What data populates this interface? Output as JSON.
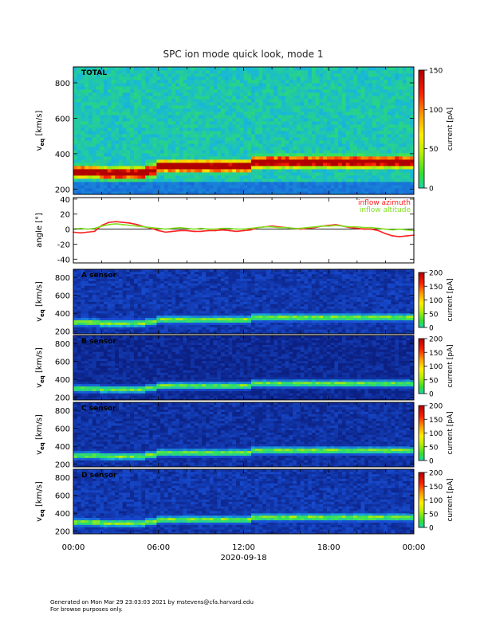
{
  "title": "SPC ion mode quick look, mode 1",
  "date_label": "2020-09-18",
  "x_ticks": [
    "00:00",
    "06:00",
    "12:00",
    "18:00",
    "00:00"
  ],
  "footer": {
    "line1": "Generated on Mon Mar 29 23:03:03 2021 by mstevens@cfa.harvard.edu",
    "line2": "For browse purposes only."
  },
  "chart_data": [
    {
      "type": "heatmap",
      "panel_label": "TOTAL",
      "ylabel_main": "v",
      "ylabel_sub": "eq",
      "ylabel_unit": "[km/s]",
      "y_ticks": [
        200,
        400,
        600,
        800
      ],
      "ylim": [
        170,
        890
      ],
      "colorbar_label": "current [pA]",
      "colorbar_ticks": [
        0,
        50,
        100,
        150
      ],
      "colorbar_range": [
        0,
        150
      ],
      "x_range_hours": [
        0,
        24
      ]
    },
    {
      "type": "line",
      "ylabel": "angle [°]",
      "y_ticks": [
        -40,
        -20,
        0,
        20,
        40
      ],
      "ylim": [
        -45,
        42
      ],
      "legend_placement": "top-right",
      "series": [
        {
          "name": "inflow azimuth",
          "color": "#ff2020",
          "x": [
            0,
            0.5,
            1,
            1.5,
            2,
            2.5,
            3,
            3.5,
            4,
            4.5,
            5,
            5.5,
            6,
            6.5,
            7,
            7.5,
            8,
            8.5,
            9,
            9.5,
            10,
            10.5,
            11,
            11.5,
            12,
            12.5,
            13,
            13.5,
            14,
            14.5,
            15,
            15.5,
            16,
            16.5,
            17,
            17.5,
            18,
            18.5,
            19,
            19.5,
            20,
            20.5,
            21,
            21.5,
            22,
            22.5,
            23,
            23.5,
            24
          ],
          "y": [
            -4,
            -5,
            -4,
            -3,
            5,
            9,
            10,
            9,
            8,
            6,
            3,
            1,
            -2,
            -4,
            -3,
            -2,
            -2,
            -3,
            -3,
            -2,
            -2,
            -1,
            -2,
            -3,
            -2,
            -1,
            2,
            3,
            4,
            3,
            2,
            1,
            0,
            1,
            2,
            4,
            5,
            6,
            4,
            2,
            1,
            0,
            0,
            -2,
            -6,
            -9,
            -10,
            -9,
            -8
          ]
        },
        {
          "name": "inflow altitude",
          "color": "#80e020",
          "x": [
            0,
            0.5,
            1,
            1.5,
            2,
            2.5,
            3,
            3.5,
            4,
            4.5,
            5,
            5.5,
            6,
            6.5,
            7,
            7.5,
            8,
            8.5,
            9,
            9.5,
            10,
            10.5,
            11,
            11.5,
            12,
            12.5,
            13,
            13.5,
            14,
            14.5,
            15,
            15.5,
            16,
            16.5,
            17,
            17.5,
            18,
            18.5,
            19,
            19.5,
            20,
            20.5,
            21,
            21.5,
            22,
            22.5,
            23,
            23.5,
            24
          ],
          "y": [
            0,
            1,
            0,
            1,
            4,
            6,
            7,
            6,
            5,
            4,
            3,
            2,
            1,
            0,
            1,
            2,
            1,
            0,
            1,
            0,
            0,
            1,
            1,
            0,
            0,
            1,
            2,
            3,
            3,
            2,
            2,
            1,
            1,
            2,
            3,
            4,
            4,
            5,
            4,
            3,
            3,
            2,
            2,
            1,
            0,
            -1,
            0,
            -1,
            -2
          ]
        }
      ]
    },
    {
      "type": "heatmap",
      "panel_label": "A sensor",
      "ylabel_main": "v",
      "ylabel_sub": "eq",
      "ylabel_unit": "[km/s]",
      "y_ticks": [
        200,
        400,
        600,
        800
      ],
      "ylim": [
        170,
        890
      ],
      "colorbar_label": "current [pA]",
      "colorbar_ticks": [
        0,
        50,
        100,
        150,
        200
      ],
      "colorbar_range": [
        0,
        200
      ],
      "x_range_hours": [
        0,
        24
      ]
    },
    {
      "type": "heatmap",
      "panel_label": "B sensor",
      "ylabel_main": "v",
      "ylabel_sub": "eq",
      "ylabel_unit": "[km/s]",
      "y_ticks": [
        200,
        400,
        600,
        800
      ],
      "ylim": [
        170,
        890
      ],
      "colorbar_label": "current [pA]",
      "colorbar_ticks": [
        0,
        50,
        100,
        150,
        200
      ],
      "colorbar_range": [
        0,
        200
      ],
      "x_range_hours": [
        0,
        24
      ]
    },
    {
      "type": "heatmap",
      "panel_label": "C sensor",
      "ylabel_main": "v",
      "ylabel_sub": "eq",
      "ylabel_unit": "[km/s]",
      "y_ticks": [
        200,
        400,
        600,
        800
      ],
      "ylim": [
        170,
        890
      ],
      "colorbar_label": "current [pA]",
      "colorbar_ticks": [
        0,
        50,
        100,
        150,
        200
      ],
      "colorbar_range": [
        0,
        200
      ],
      "x_range_hours": [
        0,
        24
      ]
    },
    {
      "type": "heatmap",
      "panel_label": "D sensor",
      "ylabel_main": "v",
      "ylabel_sub": "eq",
      "ylabel_unit": "[km/s]",
      "y_ticks": [
        200,
        400,
        600,
        800
      ],
      "ylim": [
        170,
        890
      ],
      "colorbar_label": "current [pA]",
      "colorbar_ticks": [
        0,
        50,
        100,
        150,
        200
      ],
      "colorbar_range": [
        0,
        200
      ],
      "x_range_hours": [
        0,
        24
      ]
    }
  ]
}
